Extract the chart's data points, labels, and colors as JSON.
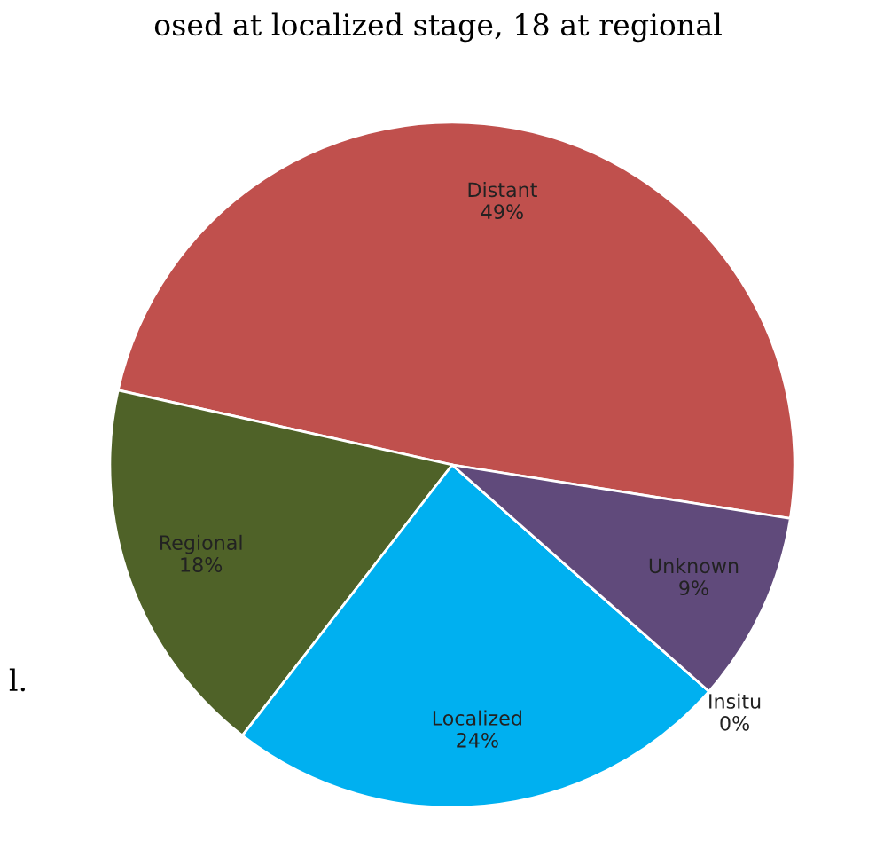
{
  "chart_data": {
    "type": "pie",
    "categories": [
      "Distant",
      "Regional",
      "Localized",
      "Insitu",
      "Unknown"
    ],
    "values": [
      49,
      18,
      24,
      0,
      9
    ],
    "value_labels": [
      "49%",
      "18%",
      "24%",
      "0%",
      "9%"
    ],
    "colors": [
      "#c0504d",
      "#4f6228",
      "#00b0f0",
      "#f79646",
      "#604a7b"
    ],
    "legend": false,
    "annotations": [
      "osed at localized stage, 18 at regional",
      "l."
    ]
  }
}
